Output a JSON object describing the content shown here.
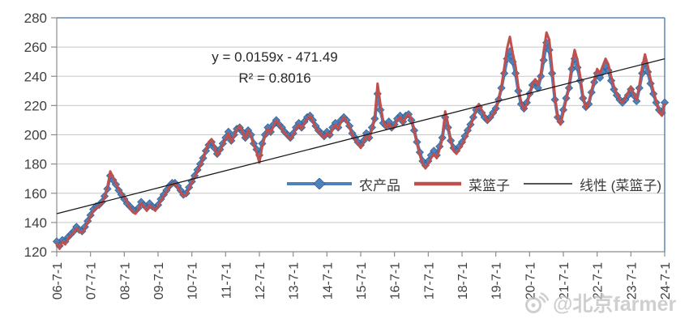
{
  "chart_data": {
    "type": "line",
    "title": "",
    "xlabel": "",
    "ylabel": "",
    "ylim": [
      120,
      280
    ],
    "y_tick_step": 20,
    "y_tick_labels": [
      "120",
      "140",
      "160",
      "180",
      "200",
      "220",
      "240",
      "260",
      "280"
    ],
    "grid": true,
    "x_tick_labels": [
      "06-7-1",
      "07-7-1",
      "08-7-1",
      "09-7-1",
      "10-7-1",
      "11-7-1",
      "12-7-1",
      "13-7-1",
      "14-7-1",
      "15-7-1",
      "16-7-1",
      "17-7-1",
      "18-7-1",
      "19-7-1",
      "20-7-1",
      "21-7-1",
      "22-7-1",
      "23-7-1",
      "24-7-1"
    ],
    "x_tick_every_points": 12,
    "x_frequency": "monthly",
    "series": [
      {
        "name": "农产品",
        "color": "#4F81BD",
        "marker": "diamond",
        "line_width": 4,
        "values": [
          127,
          124,
          128,
          127,
          130,
          132,
          134,
          137,
          135,
          134,
          137,
          141,
          145,
          149,
          151,
          152,
          154,
          158,
          163,
          172,
          169,
          166,
          162,
          159,
          156,
          153,
          151,
          149,
          148,
          150,
          154,
          152,
          150,
          153,
          151,
          150,
          152,
          156,
          159,
          162,
          165,
          167,
          167,
          165,
          162,
          159,
          160,
          164,
          168,
          172,
          176,
          180,
          184,
          189,
          193,
          195,
          191,
          187,
          190,
          194,
          198,
          202,
          196,
          200,
          204,
          205,
          202,
          198,
          203,
          200,
          194,
          190,
          186,
          194,
          200,
          205,
          202,
          207,
          210,
          207,
          205,
          202,
          200,
          198,
          201,
          205,
          208,
          205,
          209,
          212,
          213,
          210,
          206,
          203,
          201,
          199,
          202,
          200,
          205,
          208,
          205,
          210,
          212,
          210,
          206,
          201,
          198,
          195,
          193,
          196,
          201,
          198,
          205,
          211,
          228,
          217,
          208,
          206,
          209,
          205,
          207,
          211,
          213,
          209,
          213,
          214,
          210,
          203,
          195,
          188,
          182,
          179,
          182,
          186,
          189,
          186,
          192,
          198,
          212,
          205,
          196,
          191,
          189,
          192,
          195,
          199,
          203,
          207,
          212,
          217,
          219,
          215,
          212,
          210,
          212,
          215,
          218,
          224,
          232,
          242,
          252,
          257,
          250,
          242,
          230,
          221,
          218,
          222,
          228,
          234,
          236,
          232,
          240,
          251,
          263,
          258,
          242,
          224,
          212,
          209,
          217,
          225,
          232,
          245,
          252,
          246,
          237,
          225,
          219,
          221,
          229,
          236,
          242,
          239,
          243,
          247,
          244,
          237,
          231,
          227,
          224,
          222,
          224,
          227,
          231,
          227,
          223,
          232,
          242,
          249,
          243,
          235,
          228,
          222,
          217,
          215,
          222
        ]
      },
      {
        "name": "菜篮子",
        "color": "#C0504D",
        "marker": "none",
        "line_width": 3,
        "values": [
          126,
          122,
          127,
          125,
          129,
          131,
          133,
          136,
          134,
          133,
          136,
          140,
          144,
          148,
          150,
          151,
          153,
          157,
          164,
          175,
          171,
          167,
          163,
          160,
          157,
          154,
          150,
          147,
          146,
          149,
          153,
          151,
          148,
          152,
          150,
          148,
          151,
          155,
          158,
          161,
          164,
          166,
          167,
          164,
          161,
          158,
          159,
          163,
          167,
          171,
          175,
          179,
          184,
          190,
          195,
          197,
          192,
          186,
          189,
          193,
          197,
          201,
          195,
          199,
          204,
          206,
          202,
          197,
          203,
          199,
          193,
          188,
          181,
          192,
          199,
          204,
          201,
          206,
          210,
          207,
          204,
          201,
          199,
          197,
          200,
          204,
          207,
          204,
          208,
          211,
          213,
          209,
          205,
          202,
          200,
          198,
          201,
          199,
          204,
          207,
          204,
          209,
          212,
          209,
          205,
          200,
          197,
          194,
          191,
          195,
          200,
          197,
          204,
          212,
          235,
          221,
          209,
          205,
          208,
          204,
          206,
          210,
          212,
          208,
          212,
          214,
          211,
          203,
          194,
          186,
          180,
          177,
          180,
          184,
          187,
          184,
          190,
          197,
          216,
          208,
          195,
          189,
          187,
          190,
          193,
          197,
          201,
          206,
          211,
          217,
          221,
          217,
          213,
          209,
          211,
          214,
          217,
          224,
          233,
          246,
          259,
          267,
          256,
          247,
          233,
          222,
          217,
          221,
          227,
          235,
          238,
          234,
          242,
          257,
          270,
          265,
          246,
          226,
          211,
          207,
          215,
          224,
          233,
          248,
          258,
          251,
          240,
          226,
          218,
          222,
          230,
          238,
          245,
          242,
          247,
          252,
          248,
          240,
          233,
          228,
          224,
          222,
          225,
          229,
          233,
          228,
          224,
          234,
          246,
          255,
          247,
          238,
          230,
          223,
          216,
          213,
          221
        ]
      },
      {
        "name": "线性 (菜篮子)",
        "color": "#1a1a1a",
        "type": "trendline",
        "line_width": 1.3,
        "start_value": 146,
        "end_value": 252
      }
    ],
    "legend_position": "inside-center-right",
    "annotations": {
      "equation": "y = 0.0159x - 471.49",
      "r_squared": "R² = 0.8016"
    }
  },
  "legend": {
    "items": [
      {
        "label": "农产品"
      },
      {
        "label": "菜篮子"
      },
      {
        "label": "线性 (菜篮子)"
      }
    ]
  },
  "watermark": {
    "text": "@北京farmer"
  },
  "colors": {
    "series_farm": "#4F81BD",
    "series_basket": "#C0504D",
    "trendline": "#1a1a1a",
    "gridline": "#c8c8c8",
    "axis": "#8c8c8c",
    "plot_border": "#5b87b7",
    "axis_text": "#3f3f3f",
    "watermark": "#c2c2c2"
  }
}
